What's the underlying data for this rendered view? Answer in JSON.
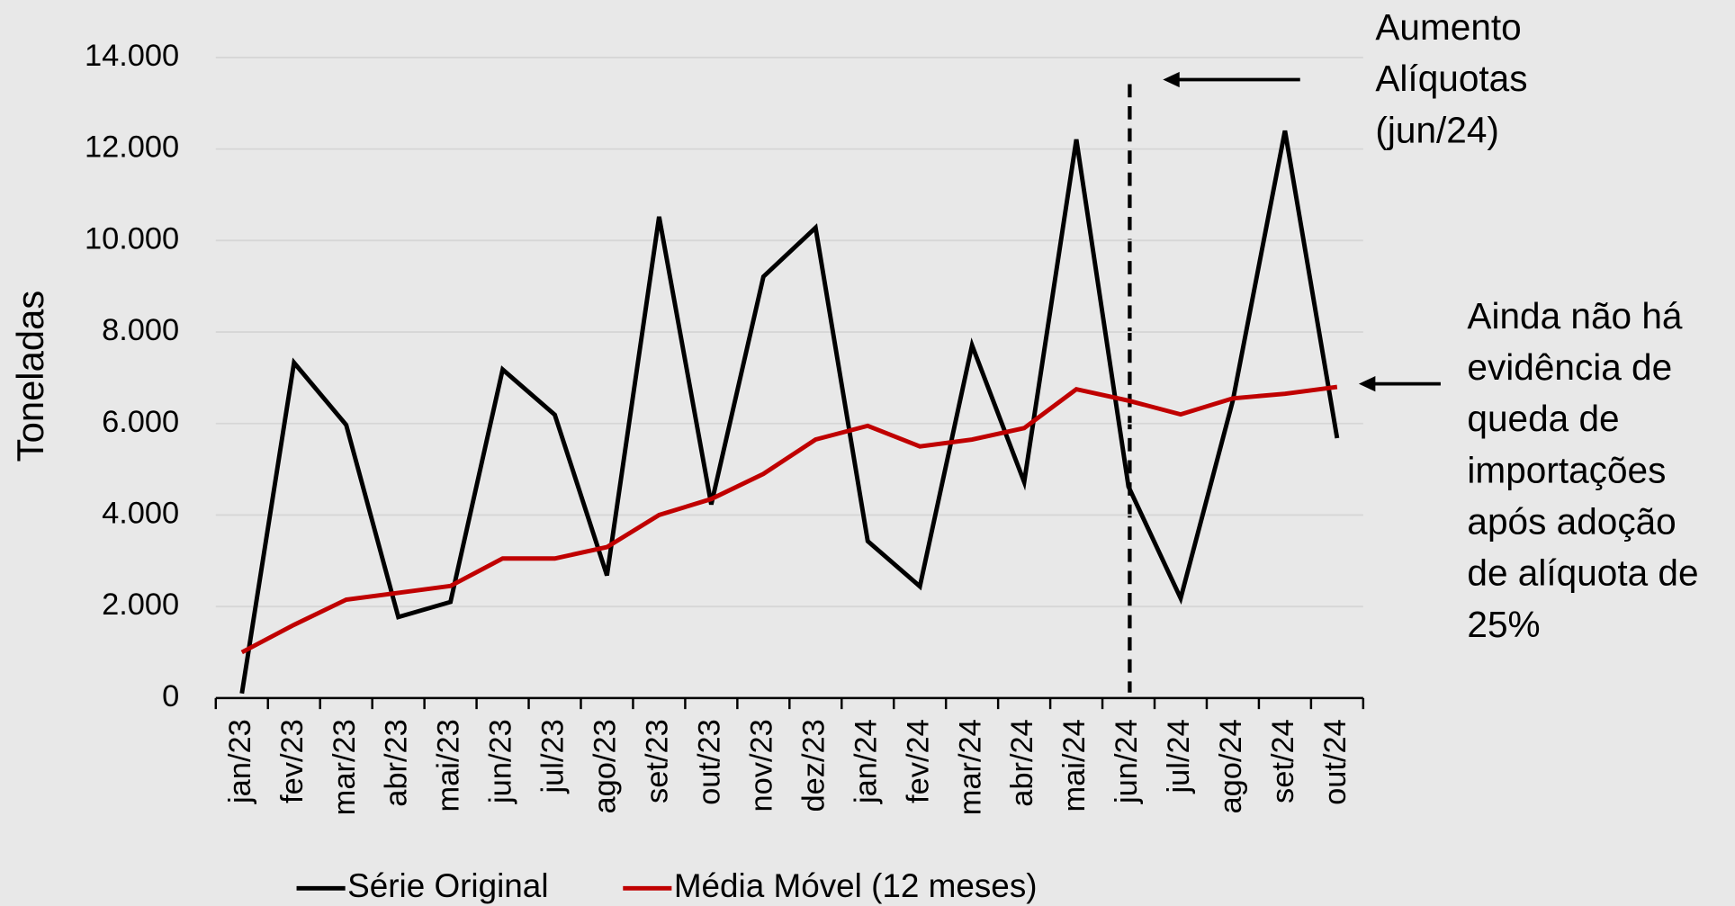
{
  "chart_data": {
    "type": "line",
    "y_label": "Toneladas",
    "categories": [
      "jan/23",
      "fev/23",
      "mar/23",
      "abr/23",
      "mai/23",
      "jun/23",
      "jul/23",
      "ago/23",
      "set/23",
      "out/23",
      "nov/23",
      "dez/23",
      "jan/24",
      "fev/24",
      "mar/24",
      "abr/24",
      "mai/24",
      "jun/24",
      "jul/24",
      "ago/24",
      "set/24",
      "out/24"
    ],
    "series": [
      {
        "name": "Série Original",
        "color": "#000000",
        "values": [
          100,
          7330,
          5970,
          1770,
          2100,
          7180,
          6190,
          2680,
          10520,
          4230,
          9210,
          10280,
          3430,
          2440,
          7710,
          4720,
          12210,
          4620,
          2180,
          6500,
          12400,
          5680
        ]
      },
      {
        "name": "Média Móvel (12 meses)",
        "color": "#c00000",
        "values": [
          1000,
          1600,
          2150,
          2300,
          2450,
          3050,
          3050,
          3300,
          4000,
          4350,
          4900,
          5650,
          5950,
          5500,
          5650,
          5900,
          6750,
          6500,
          6200,
          6550,
          6650,
          6800
        ]
      }
    ],
    "ylim": [
      0,
      14000
    ],
    "yticks": [
      0,
      {
        "value": 2000,
        "label": "2.000"
      },
      {
        "value": 4000,
        "label": "4.000"
      },
      {
        "value": 6000,
        "label": "6.000"
      },
      {
        "value": 8000,
        "label": "8.000"
      },
      {
        "value": 10000,
        "label": "10.000"
      },
      {
        "value": 12000,
        "label": "12.000"
      },
      {
        "value": 14000,
        "label": "14.000"
      }
    ],
    "grid": true,
    "legend": "bottom",
    "annotations": [
      {
        "lines": [
          "Aumento",
          "Alíquotas",
          "(jun/24)"
        ]
      },
      {
        "lines": [
          "Ainda não há",
          "evidência de",
          "queda de",
          "importações",
          "após adoção",
          "de alíquota de",
          "25%"
        ]
      }
    ]
  }
}
